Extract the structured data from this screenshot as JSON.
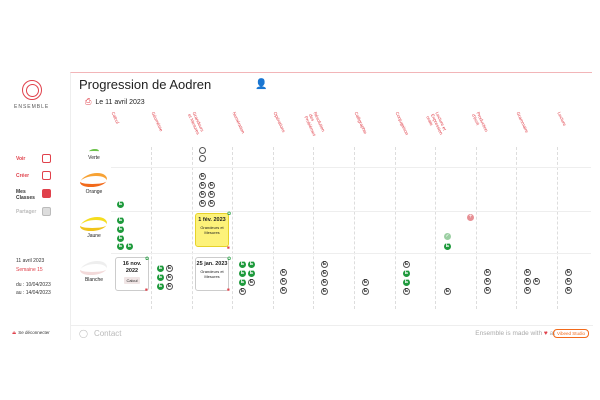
{
  "sidebar": {
    "logo_text": "ENSEMBLE",
    "nav": [
      {
        "label": "Voir",
        "icon": "eye-icon"
      },
      {
        "label": "Créer",
        "icon": "pen-icon"
      },
      {
        "label": "Mes Classes",
        "icon": "classes-icon"
      },
      {
        "label": "Partager",
        "icon": "share-icon"
      }
    ],
    "date": "11 avril 2023",
    "week": "Semaine 15",
    "from": "du : 10/04/2023",
    "to": "au : 14/04/2023",
    "logout": "Se déconnecter"
  },
  "main": {
    "title": "Progression de Aodren",
    "date_label": "Le 11 avril 2023",
    "columns": [
      "Calcul",
      "Géométrie",
      "Grandeurs et Mesures",
      "Numération",
      "Opérations",
      "Résolution des Problèmes",
      "Calligraphie",
      "Conjugaison",
      "Lecture et Expression orale",
      "Production d'écrit",
      "Grammaire",
      "Lecture"
    ],
    "levels": [
      {
        "label": "Verte",
        "color": "#6cc24a"
      },
      {
        "label": "Orange",
        "color": "#f7a234"
      },
      {
        "label": "Jaune",
        "color": "#f5dd1f"
      },
      {
        "label": "Blanche",
        "color": "#eeeeee"
      }
    ],
    "badge_letter": "E",
    "cards": {
      "jaune_grandeurs": {
        "date": "1 fév. 2023",
        "subject": "Grandeurs et Mesures"
      },
      "blanche_calcul": {
        "date": "16 nov. 2022",
        "subject": "Calcul"
      },
      "blanche_grandeurs": {
        "date": "25 jan. 2023",
        "subject": "Grandeurs et Mesures"
      }
    }
  },
  "footer": {
    "contact": "Contact",
    "made_with": "Ensemble is made with",
    "by": "at",
    "studio": "Vibeed Studio"
  }
}
